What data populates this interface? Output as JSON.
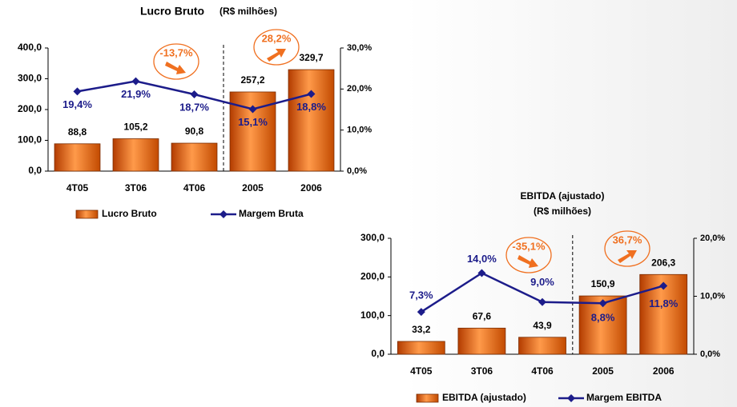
{
  "chart_data": [
    {
      "type": "bar",
      "title": "Lucro Bruto",
      "subtitle": "(R$ milhões)",
      "categories": [
        "4T05",
        "3T06",
        "4T06",
        "2005",
        "2006"
      ],
      "series": [
        {
          "name": "Lucro Bruto",
          "type": "bar",
          "color": "#e8650a",
          "values": [
            88.8,
            105.2,
            90.8,
            257.2,
            329.7
          ],
          "value_labels": [
            "88,8",
            "105,2",
            "90,8",
            "257,2",
            "329,7"
          ]
        },
        {
          "name": "Margem Bruta",
          "type": "line",
          "axis": "y2",
          "color": "#1c1c8a",
          "values": [
            19.4,
            21.9,
            18.7,
            15.1,
            18.8
          ],
          "value_labels": [
            "19,4%",
            "21,9%",
            "18,7%",
            "15,1%",
            "18,8%"
          ]
        }
      ],
      "ylim": [
        0,
        400
      ],
      "yticks": [
        {
          "value": 0,
          "label": "0,0"
        },
        {
          "value": 100,
          "label": "100,0"
        },
        {
          "value": 200,
          "label": "200,0"
        },
        {
          "value": 300,
          "label": "300,0"
        },
        {
          "value": 400,
          "label": "400,0"
        }
      ],
      "y2lim": [
        0,
        30
      ],
      "y2ticks": [
        {
          "value": 0,
          "label": "0,0%"
        },
        {
          "value": 10,
          "label": "10,0%"
        },
        {
          "value": 20,
          "label": "20,0%"
        },
        {
          "value": 30,
          "label": "30,0%"
        }
      ],
      "annotations": [
        "-13,7%",
        "28,2%"
      ]
    },
    {
      "type": "bar",
      "title": "EBITDA (ajustado)",
      "subtitle": "(R$ milhões)",
      "categories": [
        "4T05",
        "3T06",
        "4T06",
        "2005",
        "2006"
      ],
      "series": [
        {
          "name": "EBITDA (ajustado)",
          "type": "bar",
          "color": "#e8650a",
          "values": [
            33.2,
            67.6,
            43.9,
            150.9,
            206.3
          ],
          "value_labels": [
            "33,2",
            "67,6",
            "43,9",
            "150,9",
            "206,3"
          ]
        },
        {
          "name": "Margem EBITDA",
          "type": "line",
          "axis": "y2",
          "color": "#1c1c8a",
          "values": [
            7.3,
            14.0,
            9.0,
            8.8,
            11.8
          ],
          "value_labels": [
            "7,3%",
            "14,0%",
            "9,0%",
            "8,8%",
            "11,8%"
          ]
        }
      ],
      "ylim": [
        0,
        300
      ],
      "yticks": [
        {
          "value": 0,
          "label": "0,0"
        },
        {
          "value": 100,
          "label": "100,0"
        },
        {
          "value": 200,
          "label": "200,0"
        },
        {
          "value": 300,
          "label": "300,0"
        }
      ],
      "y2lim": [
        0,
        20
      ],
      "y2ticks": [
        {
          "value": 0,
          "label": "0,0%"
        },
        {
          "value": 10,
          "label": "10,0%"
        },
        {
          "value": 20,
          "label": "20,0%"
        }
      ],
      "annotations": [
        "-35,1%",
        "36,7%"
      ]
    }
  ]
}
